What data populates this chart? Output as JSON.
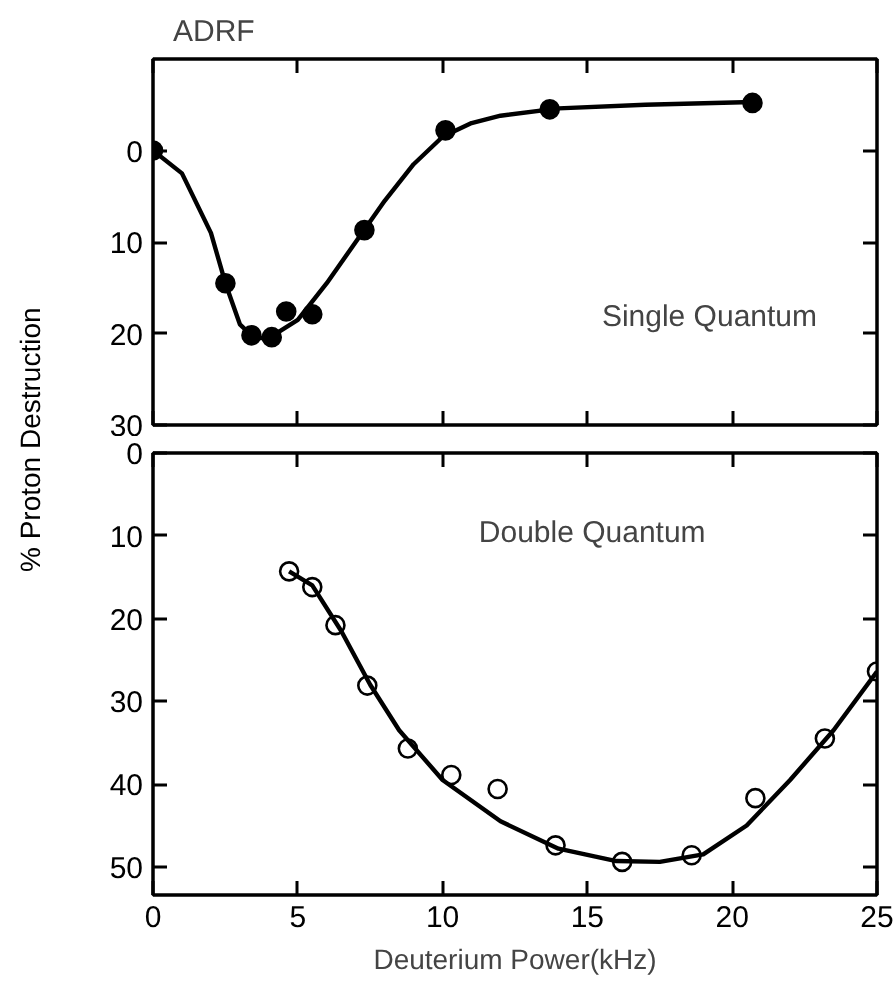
{
  "chart_data": [
    {
      "type": "scatter",
      "title": "ADRF",
      "xlim": [
        0,
        25
      ],
      "xticks": [
        0,
        5,
        10,
        15,
        20,
        25
      ],
      "ylim": [
        30,
        -10
      ],
      "yticks": [
        0,
        10,
        20,
        30
      ],
      "tick_labels": "y",
      "grid": false,
      "marker": "circle",
      "annotations": [
        "Single Quantum"
      ],
      "series": [
        {
          "color": "#000000",
          "x": [
            0,
            2.5,
            3.4,
            4.1,
            4.6,
            5.5,
            7.3,
            10.1,
            13.7,
            20.7
          ],
          "values": [
            0,
            14.5,
            20.2,
            20.4,
            17.6,
            17.9,
            8.7,
            -2.2,
            -4.5,
            -5.2
          ]
        },
        {
          "type": "line",
          "color": "#000000",
          "marker": "none",
          "x": [
            0,
            1,
            2,
            2.5,
            3,
            3.5,
            4,
            5,
            6,
            7,
            8,
            9,
            10,
            11,
            12,
            14,
            17,
            20.7
          ],
          "values": [
            0,
            2.5,
            9,
            14.5,
            19,
            20.5,
            20.5,
            18.5,
            14.5,
            10,
            5.5,
            1.5,
            -1.5,
            -3,
            -3.8,
            -4.6,
            -5,
            -5.3
          ]
        }
      ]
    },
    {
      "type": "scatter",
      "xlabel": "Deuterium Power(kHz)",
      "ylabel": "% Proton Destruction",
      "xlim": [
        0,
        25
      ],
      "xticks": [
        0,
        5,
        10,
        15,
        20,
        25
      ],
      "ylim": [
        53.4,
        0
      ],
      "yticks": [
        0,
        10,
        20,
        30,
        40,
        50
      ],
      "grid": false,
      "marker": "circle",
      "annotations": [
        "Double Quantum"
      ],
      "series": [
        {
          "color": "#000000",
          "x": [
            4.7,
            5.5,
            6.3,
            7.4,
            8.8,
            10.3,
            11.9,
            13.9,
            16.2,
            18.6,
            20.8,
            23.2,
            25.0
          ],
          "values": [
            14.3,
            16.2,
            20.8,
            28.1,
            35.7,
            38.9,
            40.6,
            47.4,
            49.4,
            48.6,
            41.7,
            34.5,
            26.4
          ]
        },
        {
          "type": "line",
          "color": "#000000",
          "marker": "none",
          "x": [
            4.7,
            5.5,
            6.5,
            7.5,
            8.5,
            10,
            12,
            14,
            16,
            17.5,
            19,
            20.5,
            22,
            23.5,
            25
          ],
          "values": [
            14.3,
            16,
            21.5,
            28,
            33.5,
            39.5,
            44.5,
            47.8,
            49.3,
            49.4,
            48.5,
            45,
            39.5,
            33.5,
            26.4
          ]
        }
      ]
    }
  ]
}
